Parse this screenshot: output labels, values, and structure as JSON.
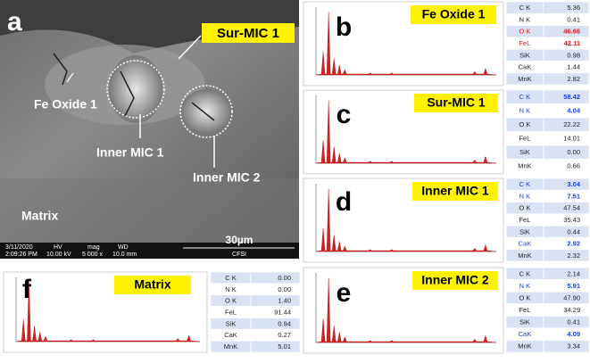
{
  "sem": {
    "panel": "a",
    "labels": {
      "sur_mic": "Sur-MIC 1",
      "fe_oxide": "Fe Oxide 1",
      "inner_mic_1": "Inner MIC 1",
      "inner_mic_2": "Inner MIC 2",
      "matrix": "Matrix"
    },
    "scale_bar": "30µm",
    "info": {
      "date": "3/11/2020",
      "time": "2:09:26 PM",
      "hv_label": "HV",
      "hv": "10.00 kV",
      "mag_label": "mag",
      "mag": "5 000 x",
      "wd_label": "WD",
      "wd": "10.0 mm",
      "lab": "CFSI"
    }
  },
  "panels": [
    {
      "letter": "b",
      "title": "Fe Oxide 1",
      "rows": [
        {
          "element": "C K",
          "value": "5.36"
        },
        {
          "element": "N K",
          "value": "0.41"
        },
        {
          "element": "O K",
          "value": "46.66",
          "color": "#d02020"
        },
        {
          "element": "FeL",
          "value": "42.11",
          "color": "#d02020"
        },
        {
          "element": "SiK",
          "value": "0.98"
        },
        {
          "element": "CaK",
          "value": "1.44"
        },
        {
          "element": "MnK",
          "value": "2.82"
        }
      ]
    },
    {
      "letter": "c",
      "title": "Sur-MIC 1",
      "rows": [
        {
          "element": "C K",
          "value": "58.42",
          "color": "#2040d0"
        },
        {
          "element": "N K",
          "value": "4.04",
          "color": "#2040d0"
        },
        {
          "element": "O K",
          "value": "22.22"
        },
        {
          "element": "FeL",
          "value": "14.01"
        },
        {
          "element": "SiK",
          "value": "0.00"
        },
        {
          "element": "MnK",
          "value": "0.66"
        }
      ]
    },
    {
      "letter": "d",
      "title": "Inner MIC 1",
      "rows": [
        {
          "element": "C K",
          "value": "3.04",
          "color": "#2040d0"
        },
        {
          "element": "N K",
          "value": "7.51",
          "color": "#2040d0"
        },
        {
          "element": "O K",
          "value": "47.54"
        },
        {
          "element": "FeL",
          "value": "35.43"
        },
        {
          "element": "SiK",
          "value": "0.44"
        },
        {
          "element": "CaK",
          "value": "2.92",
          "color": "#2040d0"
        },
        {
          "element": "MnK",
          "value": "2.32"
        }
      ]
    },
    {
      "letter": "e",
      "title": "Inner MIC 2",
      "rows": [
        {
          "element": "C K",
          "value": "2.14"
        },
        {
          "element": "N K",
          "value": "5.91",
          "color": "#2040d0"
        },
        {
          "element": "O K",
          "value": "47.90"
        },
        {
          "element": "FeL",
          "value": "34.29"
        },
        {
          "element": "SiK",
          "value": "0.41"
        },
        {
          "element": "CaK",
          "value": "4.09",
          "color": "#2040d0"
        },
        {
          "element": "MnK",
          "value": "3.34"
        }
      ]
    },
    {
      "letter": "f",
      "title": "Matrix",
      "rows": [
        {
          "element": "C K",
          "value": "0.00"
        },
        {
          "element": "N K",
          "value": "0.00"
        },
        {
          "element": "O K",
          "value": "1.40"
        },
        {
          "element": "FeL",
          "value": "91.44"
        },
        {
          "element": "SiK",
          "value": "0.94"
        },
        {
          "element": "CaK",
          "value": "0.27"
        },
        {
          "element": "MnK",
          "value": "5.01"
        }
      ]
    }
  ]
}
